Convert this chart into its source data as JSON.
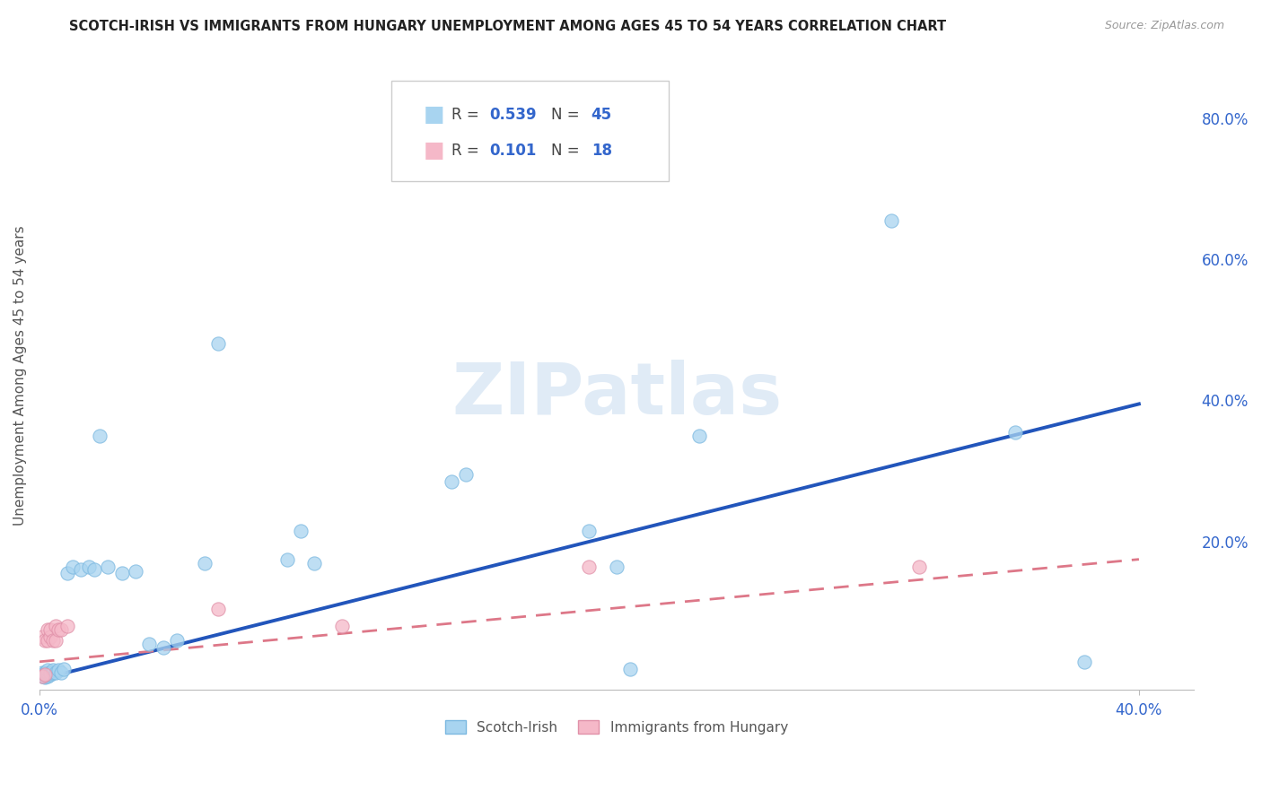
{
  "title": "SCOTCH-IRISH VS IMMIGRANTS FROM HUNGARY UNEMPLOYMENT AMONG AGES 45 TO 54 YEARS CORRELATION CHART",
  "source": "Source: ZipAtlas.com",
  "ylabel": "Unemployment Among Ages 45 to 54 years",
  "xlim": [
    0.0,
    0.42
  ],
  "ylim": [
    -0.01,
    0.88
  ],
  "yticks": [
    0.0,
    0.2,
    0.4,
    0.6,
    0.8
  ],
  "ytick_labels": [
    "",
    "20.0%",
    "40.0%",
    "60.0%",
    "80.0%"
  ],
  "xtick_labels": [
    "0.0%",
    "40.0%"
  ],
  "scotch_irish_R": 0.539,
  "scotch_irish_N": 45,
  "hungary_R": 0.101,
  "hungary_N": 18,
  "scotch_irish_color": "#A8D4F0",
  "scotch_irish_edge": "#7BB8E0",
  "hungary_color": "#F5B8C8",
  "hungary_edge": "#E090A8",
  "scotch_irish_line_color": "#2255BB",
  "hungary_line_color": "#DD7788",
  "watermark": "ZIPatlas",
  "scotch_irish_x": [
    0.001,
    0.001,
    0.001,
    0.002,
    0.002,
    0.002,
    0.002,
    0.003,
    0.003,
    0.003,
    0.003,
    0.004,
    0.004,
    0.005,
    0.005,
    0.006,
    0.007,
    0.008,
    0.009,
    0.01,
    0.012,
    0.015,
    0.018,
    0.02,
    0.022,
    0.025,
    0.03,
    0.035,
    0.04,
    0.045,
    0.05,
    0.06,
    0.065,
    0.09,
    0.095,
    0.1,
    0.15,
    0.155,
    0.2,
    0.21,
    0.215,
    0.24,
    0.31,
    0.355,
    0.38
  ],
  "scotch_irish_y": [
    0.01,
    0.012,
    0.015,
    0.008,
    0.01,
    0.012,
    0.015,
    0.01,
    0.012,
    0.015,
    0.018,
    0.012,
    0.015,
    0.015,
    0.018,
    0.015,
    0.018,
    0.015,
    0.02,
    0.155,
    0.165,
    0.16,
    0.165,
    0.16,
    0.35,
    0.165,
    0.155,
    0.158,
    0.055,
    0.05,
    0.06,
    0.17,
    0.48,
    0.175,
    0.215,
    0.17,
    0.285,
    0.295,
    0.215,
    0.165,
    0.02,
    0.35,
    0.655,
    0.355,
    0.03
  ],
  "hungary_x": [
    0.001,
    0.001,
    0.002,
    0.002,
    0.003,
    0.003,
    0.004,
    0.004,
    0.005,
    0.006,
    0.006,
    0.007,
    0.008,
    0.01,
    0.065,
    0.11,
    0.2,
    0.32
  ],
  "hungary_y": [
    0.01,
    0.065,
    0.012,
    0.06,
    0.06,
    0.075,
    0.065,
    0.075,
    0.06,
    0.06,
    0.08,
    0.075,
    0.075,
    0.08,
    0.105,
    0.08,
    0.165,
    0.165
  ]
}
